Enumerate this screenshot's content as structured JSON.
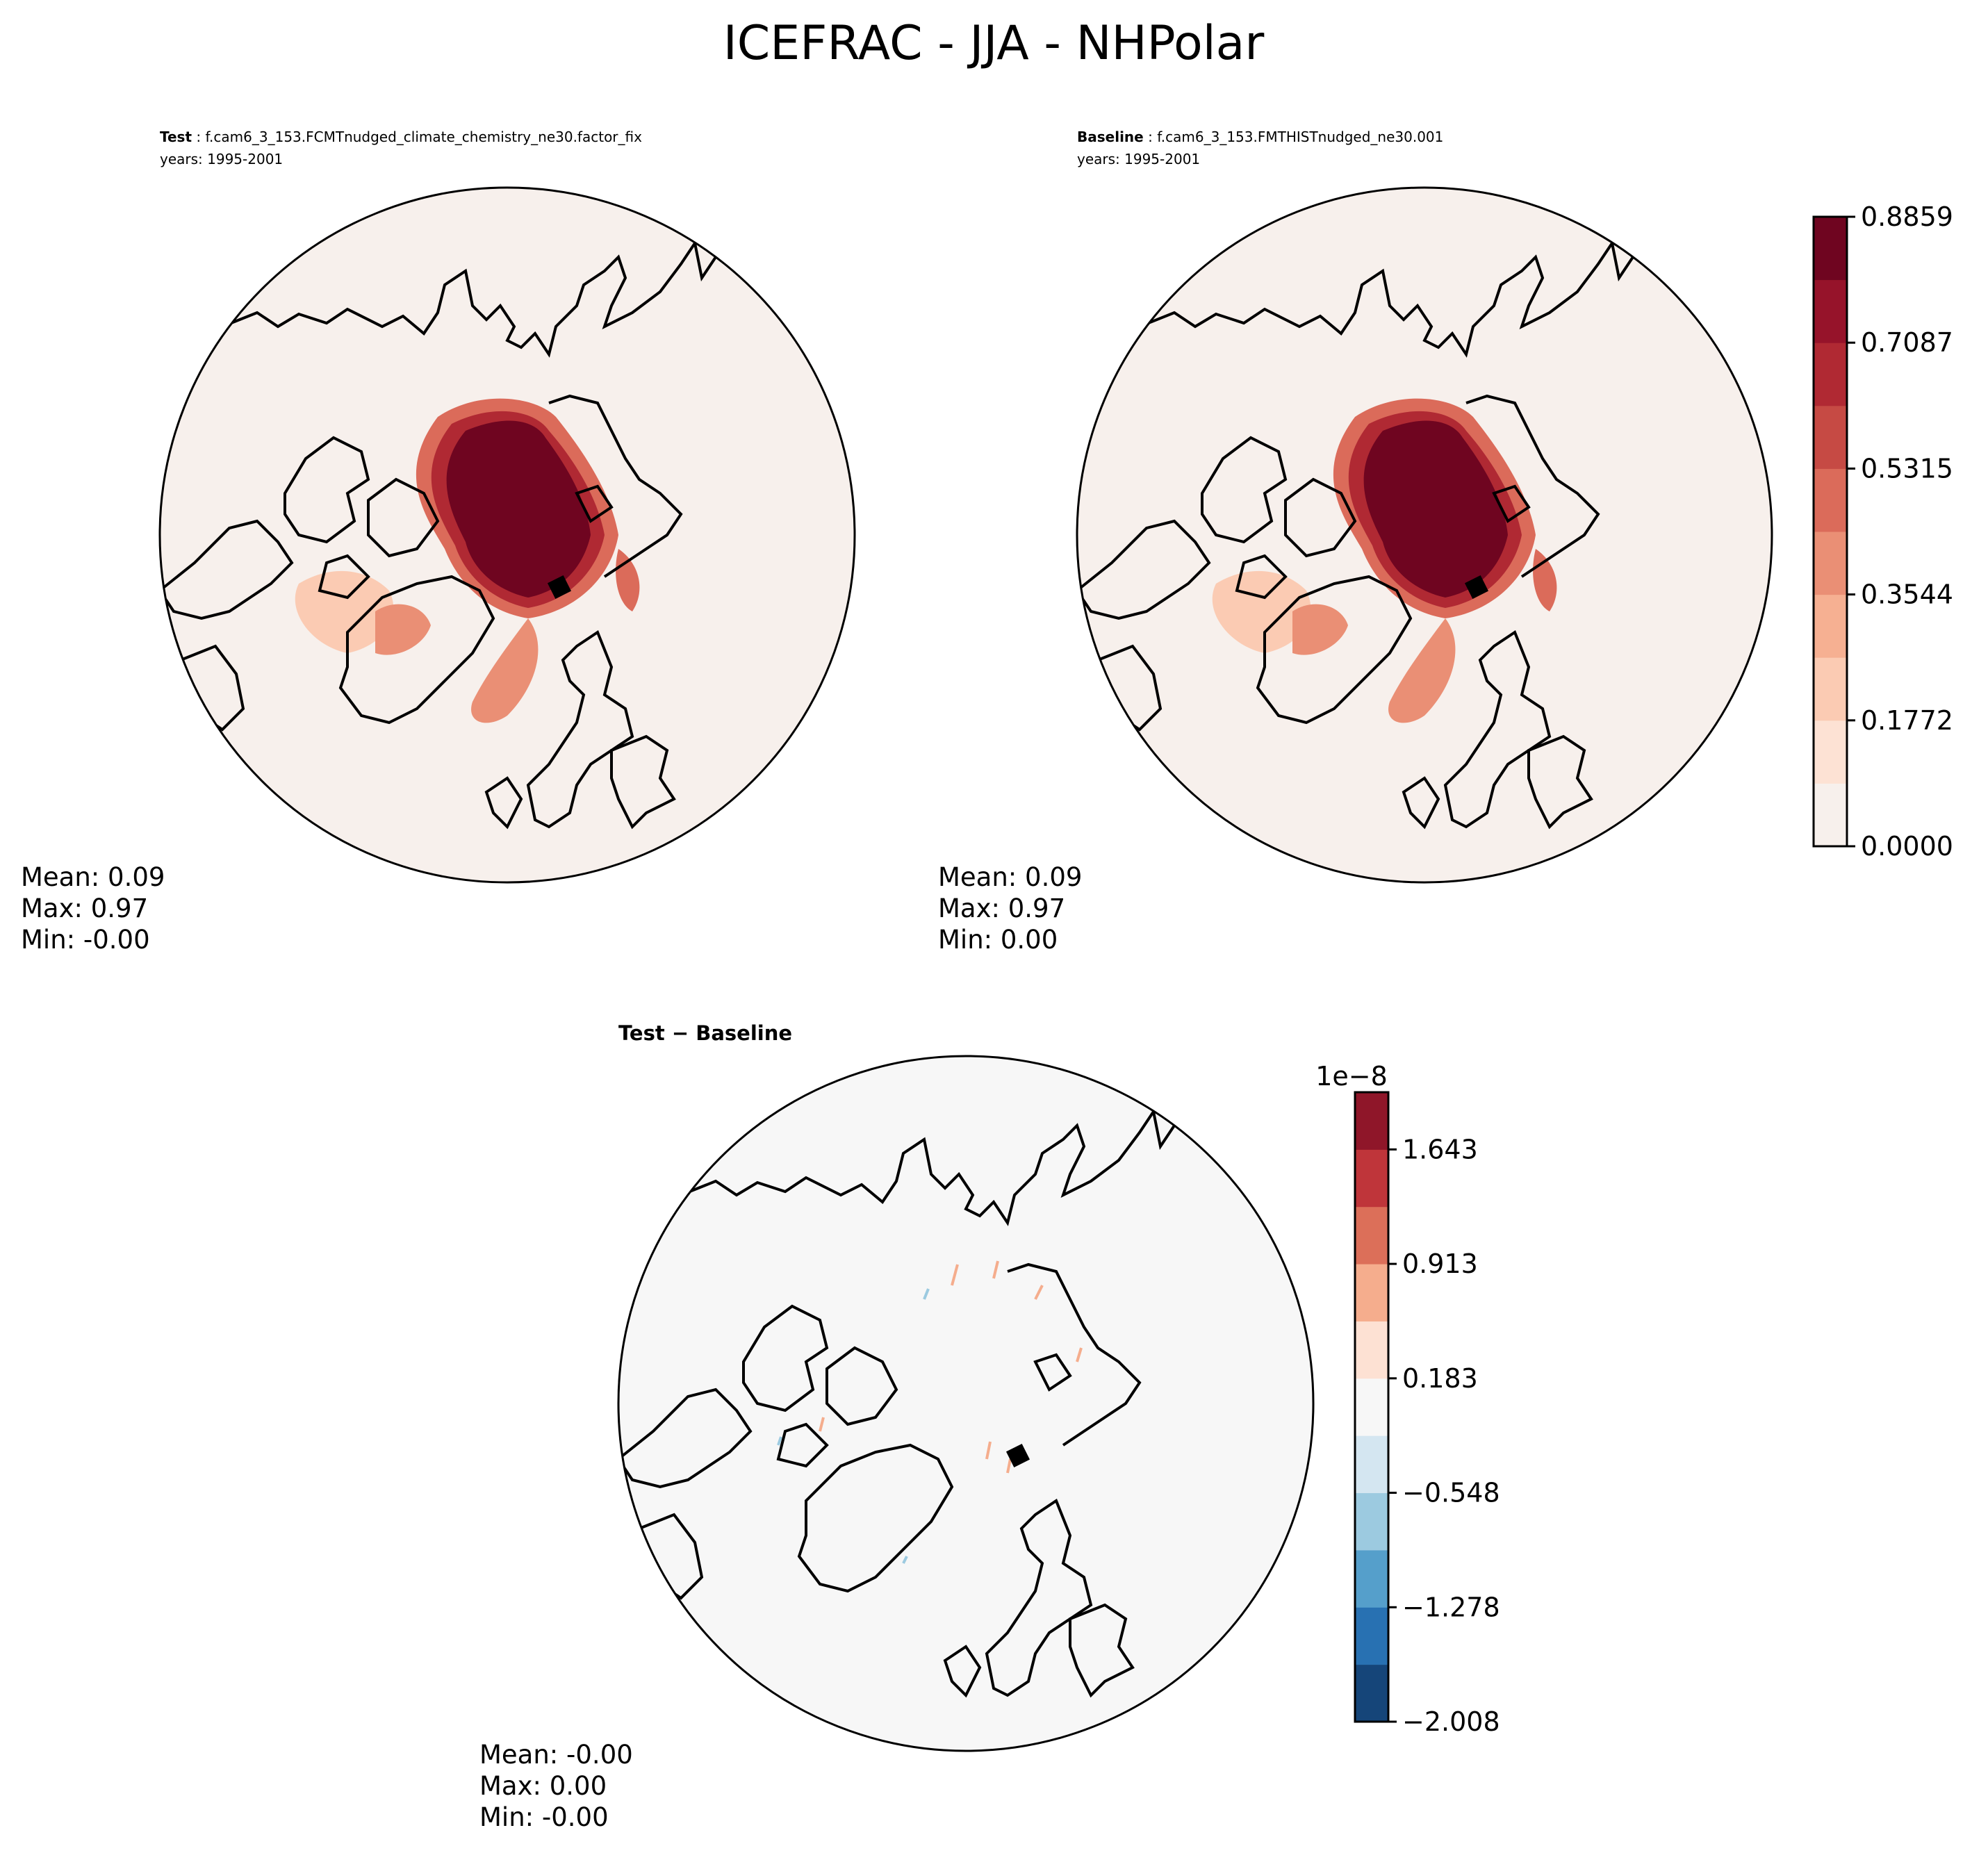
{
  "title": "ICEFRAC - JJA - NHPolar",
  "panels": {
    "test": {
      "label": "Test",
      "case": "f.cam6_3_153.FCMTnudged_climate_chemistry_ne30.factor_fix",
      "years": "years: 1995-2001",
      "stats": {
        "mean": "Mean:  0.09",
        "max": "Max:  0.97",
        "min": "Min: -0.00"
      }
    },
    "baseline": {
      "label": "Baseline",
      "case": "f.cam6_3_153.FMTHISTnudged_ne30.001",
      "years": "years: 1995-2001",
      "stats": {
        "mean": "Mean:  0.09",
        "max": "Max:  0.97",
        "min": "Min:  0.00"
      }
    },
    "diff": {
      "label": "Test − Baseline",
      "stats": {
        "mean": "Mean: -0.00",
        "max": "Max:  0.00",
        "min": "Min: -0.00"
      }
    }
  },
  "colorbars": {
    "main": {
      "ticks": [
        "0.0000",
        "0.1772",
        "0.3544",
        "0.5315",
        "0.7087",
        "0.8859"
      ],
      "colors": [
        "#f7f0ec",
        "#fde2d4",
        "#fbcbb3",
        "#f6b092",
        "#ea8f75",
        "#db6b5a",
        "#c64a44",
        "#b02933",
        "#96132a",
        "#6f0520"
      ]
    },
    "diff": {
      "offset_label": "1e−8",
      "ticks": [
        "−2.008",
        "−1.278",
        "−0.548",
        "0.183",
        "0.913",
        "1.643"
      ],
      "colors": [
        "#154579",
        "#2871b2",
        "#559fcb",
        "#9ccae0",
        "#d4e6f1",
        "#f7f7f7",
        "#fde1d3",
        "#f5ad8d",
        "#dc6f59",
        "#bf353a",
        "#8f1629"
      ]
    }
  },
  "map": {
    "projection": "north polar stereographic",
    "field": "ICEFRAC",
    "season": "JJA",
    "region": "NHPolar"
  }
}
